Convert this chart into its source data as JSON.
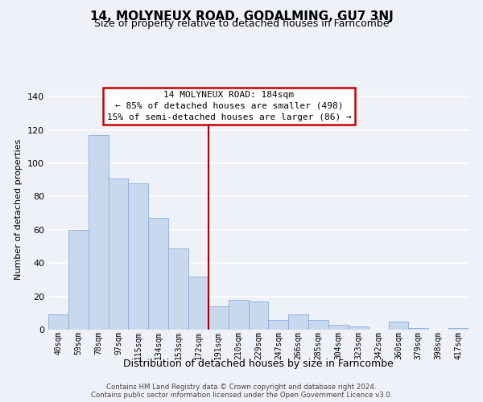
{
  "title": "14, MOLYNEUX ROAD, GODALMING, GU7 3NJ",
  "subtitle": "Size of property relative to detached houses in Farncombe",
  "xlabel": "Distribution of detached houses by size in Farncombe",
  "ylabel": "Number of detached properties",
  "bar_labels": [
    "40sqm",
    "59sqm",
    "78sqm",
    "97sqm",
    "115sqm",
    "134sqm",
    "153sqm",
    "172sqm",
    "191sqm",
    "210sqm",
    "229sqm",
    "247sqm",
    "266sqm",
    "285sqm",
    "304sqm",
    "323sqm",
    "342sqm",
    "360sqm",
    "379sqm",
    "398sqm",
    "417sqm"
  ],
  "bar_values": [
    9,
    60,
    117,
    91,
    88,
    67,
    49,
    32,
    14,
    18,
    17,
    6,
    9,
    6,
    3,
    2,
    0,
    5,
    1,
    0,
    1
  ],
  "bar_color": "#c8d9ee",
  "bar_edge_color": "#8aace0",
  "ylim": [
    0,
    145
  ],
  "yticks": [
    0,
    20,
    40,
    60,
    80,
    100,
    120,
    140
  ],
  "ref_line_index": 8,
  "annotation_title": "14 MOLYNEUX ROAD: 184sqm",
  "annotation_line1": "← 85% of detached houses are smaller (498)",
  "annotation_line2": "15% of semi-detached houses are larger (86) →",
  "footer_line1": "Contains HM Land Registry data © Crown copyright and database right 2024.",
  "footer_line2": "Contains public sector information licensed under the Open Government Licence v3.0.",
  "bg_color": "#eef2f8",
  "grid_color": "#ffffff",
  "ref_line_color": "#aa0000",
  "ann_box_color": "#cc0000"
}
